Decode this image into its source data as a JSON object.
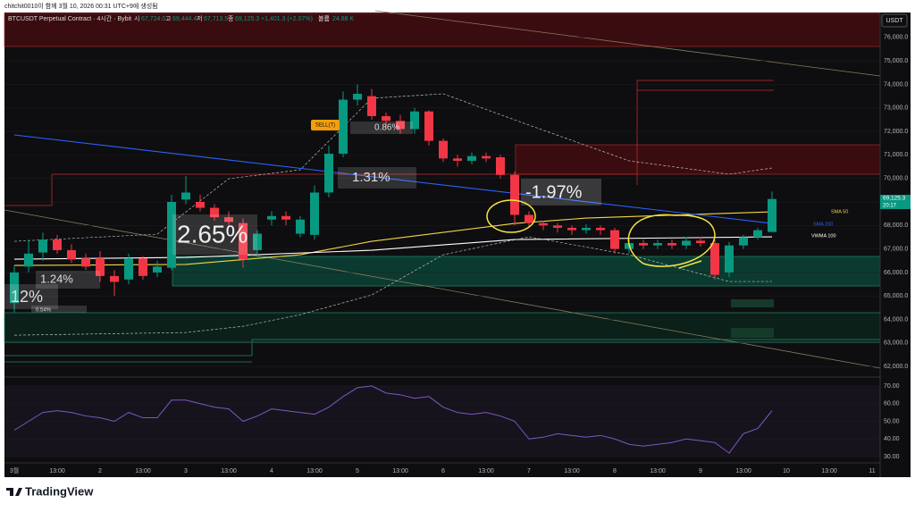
{
  "attribution": "chitchit0010이 함께 3월 10, 2026 00:31 UTC+9에 생성됨",
  "header": {
    "symbol": "BTCUSDT Perpetual Contract · 4시간 · Bybit",
    "open_label": "시",
    "open": "67,724.0",
    "high_label": "고",
    "high": "69,444.4",
    "low_label": "저",
    "low": "67,713.5",
    "close_label": "종",
    "close": "69,125.3",
    "change": "+1,401.3 (+2.07%)",
    "volume_label": "볼륨",
    "volume": "24.88 K"
  },
  "currency": "USDT",
  "price_tag": {
    "price": "69,125.3",
    "countdown": "20:17"
  },
  "annotations": {
    "sell": "SELL(T)",
    "pct": [
      "12%",
      "0.54%",
      "1.24%",
      "2.65%",
      "1.31%",
      "0.86%",
      "-1.97%"
    ]
  },
  "logo": "TradingView",
  "chart_data": [
    {
      "type": "candlestick",
      "up_color": "#089981",
      "down_color": "#f23645",
      "open": [
        64700,
        66250,
        66850,
        67400,
        66950,
        66600,
        66600,
        65850,
        65700,
        66600,
        66000,
        66200,
        69100,
        69000,
        68750,
        68350,
        68100,
        66950,
        68250,
        68400,
        67650,
        67600,
        69400,
        71050,
        73350,
        73500,
        72650,
        72450,
        72100,
        72850,
        71600,
        70850,
        70750,
        70950,
        70900,
        70150,
        68450,
        68100,
        68000,
        67900,
        67800,
        67900,
        67800,
        67000,
        67250,
        67150,
        67250,
        67150,
        67350,
        67250,
        66000,
        67150,
        67500,
        67724
      ],
      "high": [
        66300,
        67400,
        67700,
        67600,
        67200,
        66800,
        66900,
        66100,
        66800,
        66700,
        66500,
        69300,
        70100,
        69300,
        68900,
        68600,
        68300,
        67800,
        68600,
        68600,
        68400,
        69700,
        71400,
        73700,
        74000,
        73800,
        72800,
        72700,
        73000,
        72900,
        71700,
        71000,
        71100,
        71100,
        71000,
        70300,
        68600,
        68200,
        68100,
        68000,
        68050,
        68000,
        67900,
        67400,
        67400,
        67400,
        67400,
        67500,
        67500,
        67400,
        67300,
        67600,
        67900,
        69444.4
      ],
      "low": [
        64300,
        66000,
        66500,
        66800,
        66400,
        66100,
        65600,
        65000,
        65500,
        65700,
        65800,
        66100,
        68900,
        68600,
        68200,
        67900,
        66200,
        66700,
        68000,
        68000,
        67500,
        67400,
        69200,
        70900,
        73100,
        72500,
        72200,
        71900,
        71900,
        71400,
        70700,
        70500,
        70600,
        70700,
        70000,
        68000,
        67900,
        67800,
        67700,
        67600,
        67650,
        67600,
        66800,
        66800,
        67000,
        67000,
        67000,
        67000,
        67100,
        65700,
        65800,
        67000,
        67400,
        67713.5
      ],
      "close": [
        66000,
        66800,
        67400,
        66950,
        66550,
        66250,
        65850,
        65600,
        66600,
        65850,
        66250,
        69000,
        69400,
        68750,
        68350,
        68150,
        66550,
        67650,
        68400,
        68250,
        68250,
        69400,
        71050,
        73350,
        73600,
        72650,
        72450,
        72100,
        72850,
        71600,
        70850,
        70750,
        70950,
        70850,
        70150,
        68450,
        68100,
        68000,
        67900,
        67800,
        67900,
        67800,
        67000,
        67250,
        67150,
        67250,
        67150,
        67350,
        67250,
        65900,
        67150,
        67500,
        67800,
        69125.3
      ],
      "series": [
        {
          "name": "SMA 50",
          "color": "#f5d547",
          "x": [
            0,
            12,
            20,
            25,
            35,
            40,
            53
          ],
          "values": [
            66298,
            66340,
            66755,
            67325,
            68086,
            68314,
            68580
          ]
        },
        {
          "name": "SMA 200",
          "color": "#2962ff",
          "x": [
            0,
            53
          ],
          "values": [
            71851,
            68086
          ]
        },
        {
          "name": "VWMA 100",
          "color": "#ffffff",
          "x": [
            0,
            12,
            25,
            35,
            53
          ],
          "values": [
            66564,
            66640,
            66945,
            67401,
            67515
          ]
        },
        {
          "color": "#bbbbbb",
          "dashed": true,
          "x": [
            0,
            10,
            15,
            20,
            25,
            30,
            36,
            43,
            50,
            53
          ],
          "values": [
            67325,
            67629,
            69988,
            70368,
            73411,
            73601,
            72270,
            70749,
            70178,
            70444
          ]
        },
        {
          "color": "#bbbbbb",
          "dashed": true,
          "x": [
            0,
            12,
            16,
            20,
            25,
            30,
            36,
            43,
            50,
            53
          ],
          "values": [
            63331,
            63445,
            63712,
            64206,
            65043,
            66755,
            67515,
            66755,
            65614,
            65614
          ]
        }
      ],
      "xticks": [
        "3월",
        "13:00",
        "2",
        "13:00",
        "3",
        "13:00",
        "4",
        "13:00",
        "5",
        "13:00",
        "6",
        "13:00",
        "7",
        "13:00",
        "8",
        "13:00",
        "9",
        "13:00",
        "10",
        "13:00",
        "11"
      ],
      "ylim": [
        61550,
        77020
      ],
      "yticks": [
        {
          "value": 62000,
          "label": "62,000.0"
        },
        {
          "value": 63000,
          "label": "63,000.0"
        },
        {
          "value": 64000,
          "label": "64,000.0"
        },
        {
          "value": 65000,
          "label": "65,000.0"
        },
        {
          "value": 66000,
          "label": "66,000.0"
        },
        {
          "value": 67000,
          "label": "67,000.0"
        },
        {
          "value": 68000,
          "label": "68,000.0"
        },
        {
          "value": 69000,
          "label": "69,000.0"
        },
        {
          "value": 70000,
          "label": "70,000.0"
        },
        {
          "value": 71000,
          "label": "71,000.0"
        },
        {
          "value": 72000,
          "label": "72,000.0"
        },
        {
          "value": 73000,
          "label": "73,000.0"
        },
        {
          "value": 74000,
          "label": "74,000.0"
        },
        {
          "value": 75000,
          "label": "75,000.0"
        },
        {
          "value": 76000,
          "label": "76,000.0"
        }
      ]
    },
    {
      "type": "line",
      "color": "#7e57c2",
      "values": [
        45,
        50,
        55,
        56,
        55,
        53,
        52,
        50,
        55,
        52,
        52,
        62,
        62,
        60,
        58,
        57,
        50,
        53,
        57,
        56,
        55,
        54,
        58,
        64,
        69,
        70,
        66,
        65,
        63,
        64,
        58,
        55,
        54,
        55,
        53,
        50,
        40,
        41,
        43,
        42,
        41,
        42,
        40,
        37,
        36,
        37,
        38,
        40,
        39,
        38,
        32,
        43,
        46,
        56
      ],
      "ylim": [
        27,
        73.5
      ],
      "yticks": [
        {
          "value": 30,
          "label": "30.00"
        },
        {
          "value": 40,
          "label": "40.00"
        },
        {
          "value": 50,
          "label": "50.00"
        },
        {
          "value": 60,
          "label": "60.00"
        },
        {
          "value": 70,
          "label": "70.00"
        }
      ]
    }
  ]
}
